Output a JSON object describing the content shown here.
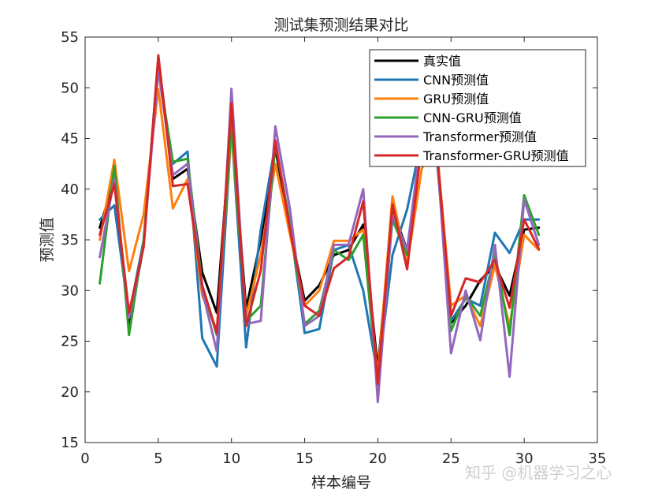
{
  "chart_data": {
    "type": "line",
    "title": "测试集预测结果对比",
    "xlabel": "样本编号",
    "ylabel": "预测值",
    "xlim": [
      0,
      35
    ],
    "ylim": [
      15,
      55
    ],
    "xticks": [
      0,
      5,
      10,
      15,
      20,
      25,
      30,
      35
    ],
    "yticks": [
      15,
      20,
      25,
      30,
      35,
      40,
      45,
      50,
      55
    ],
    "legend_position": "top-right",
    "grid": false,
    "x": [
      1,
      2,
      3,
      4,
      5,
      6,
      7,
      8,
      9,
      10,
      11,
      12,
      13,
      14,
      15,
      16,
      17,
      18,
      19,
      20,
      21,
      22,
      23,
      24,
      25,
      26,
      27,
      28,
      29,
      30,
      31
    ],
    "series": [
      {
        "name": "真实值",
        "color": "#000000",
        "values": [
          36.2,
          41.0,
          26.5,
          34.5,
          53.0,
          41.0,
          42.0,
          31.8,
          27.8,
          47.0,
          28.2,
          35.0,
          44.0,
          36.0,
          29.0,
          30.5,
          33.5,
          34.0,
          36.5,
          22.3,
          38.0,
          34.0,
          44.5,
          44.0,
          26.8,
          28.5,
          31.0,
          32.5,
          29.5,
          36.0,
          36.2
        ]
      },
      {
        "name": "CNN预测值",
        "color": "#1f77b4",
        "values": [
          37.0,
          38.4,
          27.5,
          35.0,
          52.0,
          42.5,
          43.7,
          25.3,
          22.5,
          46.0,
          24.4,
          36.0,
          44.5,
          36.5,
          25.8,
          26.2,
          34.0,
          34.5,
          30.0,
          21.5,
          33.5,
          38.0,
          45.0,
          43.5,
          27.0,
          29.2,
          28.5,
          35.7,
          33.7,
          37.0,
          37.0
        ]
      },
      {
        "name": "GRU预测值",
        "color": "#ff7f0e",
        "values": [
          35.0,
          42.9,
          31.9,
          37.5,
          49.9,
          38.1,
          41.0,
          29.5,
          26.1,
          45.8,
          27.5,
          33.5,
          42.5,
          35.5,
          28.5,
          30.0,
          34.9,
          34.9,
          36.0,
          21.6,
          39.3,
          32.5,
          42.0,
          44.5,
          28.5,
          29.5,
          26.5,
          32.5,
          26.5,
          35.5,
          34.0
        ]
      },
      {
        "name": "CNN-GRU预测值",
        "color": "#2ca02c",
        "values": [
          30.7,
          42.3,
          25.6,
          35.0,
          51.8,
          42.7,
          43.0,
          30.5,
          25.6,
          46.5,
          27.0,
          28.5,
          44.5,
          36.5,
          26.7,
          28.0,
          34.0,
          33.0,
          35.5,
          20.5,
          37.0,
          33.5,
          44.5,
          44.0,
          26.0,
          29.5,
          27.5,
          33.7,
          25.6,
          39.4,
          35.5
        ]
      },
      {
        "name": "Transformer预测值",
        "color": "#9467bd",
        "values": [
          33.3,
          41.0,
          27.3,
          34.5,
          51.8,
          41.4,
          42.5,
          30.0,
          24.0,
          49.9,
          26.7,
          27.0,
          46.2,
          38.0,
          26.5,
          27.5,
          34.5,
          34.5,
          40.0,
          19.0,
          37.5,
          34.0,
          45.5,
          44.5,
          23.8,
          30.0,
          25.1,
          34.5,
          21.5,
          39.0,
          34.5
        ]
      },
      {
        "name": "Transformer-GRU预测值",
        "color": "#d62728",
        "values": [
          35.5,
          40.5,
          27.8,
          34.3,
          53.2,
          40.3,
          40.5,
          30.5,
          25.8,
          48.5,
          26.5,
          32.0,
          44.8,
          36.0,
          28.5,
          27.5,
          32.2,
          33.3,
          38.8,
          20.8,
          38.5,
          32.1,
          44.5,
          44.5,
          27.5,
          31.2,
          30.8,
          33.0,
          28.3,
          37.0,
          34.1
        ]
      }
    ]
  },
  "watermark": {
    "text": "知乎 @机器学习之心"
  }
}
